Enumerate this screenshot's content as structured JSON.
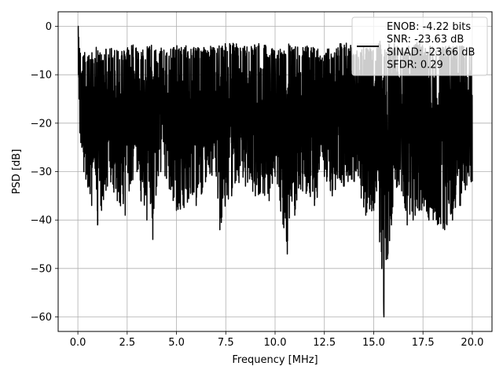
{
  "chart_data": {
    "type": "line",
    "title": "",
    "xlabel": "Frequency [MHz]",
    "ylabel": "PSD [dB]",
    "xlim": [
      -1.0,
      21.0
    ],
    "ylim": [
      -63.0,
      3.0
    ],
    "xticks": [
      0.0,
      2.5,
      5.0,
      7.5,
      10.0,
      12.5,
      15.0,
      17.5,
      20.0
    ],
    "xtick_labels": [
      "0.0",
      "2.5",
      "5.0",
      "7.5",
      "10.0",
      "12.5",
      "15.0",
      "17.5",
      "20.0"
    ],
    "yticks": [
      0,
      -10,
      -20,
      -30,
      -40,
      -50,
      -60
    ],
    "ytick_labels": [
      "0",
      "−10",
      "−20",
      "−30",
      "−40",
      "−50",
      "−60"
    ],
    "grid": true,
    "legend_position": "top-right",
    "legend_lines": [
      "ENOB: -4.22 bits",
      "SNR: -23.63 dB",
      "SINAD: -23.66 dB",
      "SFDR: 0.29"
    ],
    "line_color": "#000000",
    "series": [
      {
        "x": [
          0.0,
          0.03,
          0.06,
          0.1,
          0.15,
          0.2,
          0.3,
          0.5,
          0.7,
          0.78,
          0.9,
          1.0,
          1.2,
          1.5,
          2.0,
          2.4,
          2.6,
          3.0,
          3.2,
          3.5,
          3.6,
          3.8,
          4.0,
          4.2,
          5.0,
          6.0,
          7.0,
          7.2,
          7.8,
          8.5,
          9.0,
          9.7,
          10.0,
          10.62,
          10.8,
          11.0,
          11.4,
          12.0,
          12.5,
          12.9,
          13.5,
          14.0,
          14.6,
          15.0,
          15.15,
          15.3,
          15.52,
          15.7,
          15.9,
          16.2,
          16.5,
          16.7,
          17.0,
          17.3,
          17.8,
          18.6,
          19.0,
          19.4,
          20.0
        ],
        "upper": [
          0.0,
          -4,
          -6,
          -6,
          -7,
          -8,
          -8,
          -9,
          -8,
          -9,
          -7,
          -8,
          -8,
          -7,
          -7,
          -8,
          -6,
          -7,
          -8,
          -7,
          -6,
          -7,
          -8,
          -7,
          -7,
          -7,
          -7,
          -7,
          -6,
          -7,
          -6,
          -7,
          -8,
          -7,
          -6,
          -7,
          -7,
          -7,
          -8,
          -7,
          -6,
          -7,
          -7,
          -8,
          -7,
          -6,
          -7,
          -7,
          -6,
          -7,
          -8,
          -6,
          -7,
          -6,
          -7,
          -7,
          -7,
          -7,
          -7
        ],
        "lower": [
          0.0,
          -10,
          -15,
          -22,
          -24,
          -25,
          -30,
          -33,
          -37,
          -28,
          -30,
          -41,
          -38,
          -33,
          -36,
          -39,
          -34,
          -30,
          -36,
          -40,
          -32,
          -44,
          -33,
          -30,
          -38,
          -37,
          -30,
          -42,
          -35,
          -33,
          -35,
          -36,
          -31,
          -47,
          -35,
          -39,
          -34,
          -37,
          -31,
          -35,
          -33,
          -32,
          -39,
          -38,
          -34,
          -44.5,
          -60,
          -48,
          -41,
          -33,
          -35,
          -41,
          -40,
          -38,
          -40,
          -42,
          -40,
          -37,
          -32
        ]
      }
    ]
  }
}
